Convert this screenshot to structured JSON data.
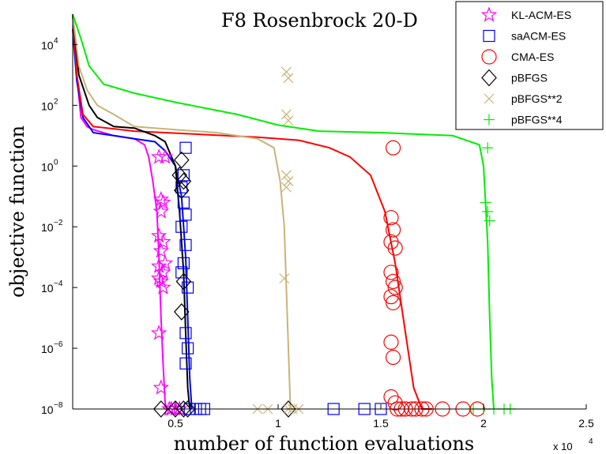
{
  "chart_data": {
    "type": "line",
    "title": "F8 Rosenbrock 20-D",
    "xlabel": "number of function evaluations",
    "ylabel": "objective function",
    "x_multiplier": "x 10",
    "x_multiplier_exp": "4",
    "xlim": [
      0,
      2.5
    ],
    "ylim_log10": [
      -8,
      5
    ],
    "y_scale": "log",
    "grid": false,
    "legend_position": "top-right",
    "x_ticks": [
      {
        "value": 0.5,
        "label": "0.5"
      },
      {
        "value": 1,
        "label": "1"
      },
      {
        "value": 1.5,
        "label": "1.5"
      },
      {
        "value": 2,
        "label": "2"
      },
      {
        "value": 2.5,
        "label": "2.5"
      }
    ],
    "y_ticks": [
      {
        "exp": -8,
        "base": "10",
        "sup": "−8"
      },
      {
        "exp": -6,
        "base": "10",
        "sup": "−6"
      },
      {
        "exp": -4,
        "base": "10",
        "sup": "−4"
      },
      {
        "exp": -2,
        "base": "10",
        "sup": "−2"
      },
      {
        "exp": 0,
        "base": "10",
        "sup": "0"
      },
      {
        "exp": 2,
        "base": "10",
        "sup": "2"
      },
      {
        "exp": 4,
        "base": "10",
        "sup": "4"
      }
    ],
    "series": [
      {
        "name": "KL-ACM-ES",
        "color": "#ff00ff",
        "marker": "star",
        "line": [
          [
            0,
            5
          ],
          [
            0.02,
            3
          ],
          [
            0.04,
            1.6
          ],
          [
            0.07,
            1.3
          ],
          [
            0.1,
            1.2
          ],
          [
            0.15,
            1.1
          ],
          [
            0.2,
            1.0
          ],
          [
            0.3,
            0.9
          ],
          [
            0.35,
            0.7
          ],
          [
            0.37,
            0.3
          ],
          [
            0.39,
            -0.5
          ],
          [
            0.41,
            -1.5
          ],
          [
            0.42,
            -3
          ],
          [
            0.43,
            -5
          ],
          [
            0.44,
            -6.5
          ],
          [
            0.45,
            -7.8
          ],
          [
            0.46,
            -8
          ]
        ],
        "points": [
          [
            0.42,
            0.3
          ],
          [
            0.45,
            0.3
          ],
          [
            0.43,
            -1.1
          ],
          [
            0.43,
            -1.5
          ],
          [
            0.44,
            -1.2
          ],
          [
            0.42,
            -2.3
          ],
          [
            0.44,
            -2.5
          ],
          [
            0.43,
            -2.8
          ],
          [
            0.42,
            -3.3
          ],
          [
            0.44,
            -3.5
          ],
          [
            0.43,
            -3.8
          ],
          [
            0.45,
            -3.2
          ],
          [
            0.42,
            -3.7
          ],
          [
            0.44,
            -4.0
          ],
          [
            0.42,
            -5.5
          ],
          [
            0.43,
            -7.3
          ],
          [
            0.47,
            -8
          ],
          [
            0.48,
            -8
          ],
          [
            0.5,
            -8
          ],
          [
            0.52,
            -8
          ]
        ]
      },
      {
        "name": "saACM-ES",
        "color": "#0000ff",
        "marker": "square",
        "line": [
          [
            0,
            4.5
          ],
          [
            0.02,
            2.8
          ],
          [
            0.05,
            1.6
          ],
          [
            0.1,
            1.1
          ],
          [
            0.2,
            1.0
          ],
          [
            0.3,
            0.9
          ],
          [
            0.4,
            0.8
          ],
          [
            0.45,
            0.5
          ],
          [
            0.5,
            0
          ],
          [
            0.53,
            -1
          ],
          [
            0.55,
            -3
          ],
          [
            0.56,
            -5
          ],
          [
            0.57,
            -7
          ],
          [
            0.58,
            -8
          ]
        ],
        "points": [
          [
            0.55,
            0.6
          ],
          [
            0.54,
            -0.3
          ],
          [
            0.53,
            -0.7
          ],
          [
            0.54,
            -1.2
          ],
          [
            0.55,
            -1.6
          ],
          [
            0.53,
            -2.0
          ],
          [
            0.55,
            -2.6
          ],
          [
            0.54,
            -3.2
          ],
          [
            0.53,
            -3.5
          ],
          [
            0.56,
            -4.0
          ],
          [
            0.55,
            -5.5
          ],
          [
            0.56,
            -6.0
          ],
          [
            0.55,
            -6.5
          ],
          [
            0.57,
            -8
          ],
          [
            0.6,
            -8
          ],
          [
            0.62,
            -8
          ],
          [
            0.64,
            -8
          ],
          [
            1.27,
            -8
          ],
          [
            1.42,
            -8
          ],
          [
            1.5,
            -8
          ]
        ]
      },
      {
        "name": "CMA-ES",
        "color": "#ff0000",
        "marker": "circle",
        "line": [
          [
            0,
            5
          ],
          [
            0.02,
            3
          ],
          [
            0.05,
            1.7
          ],
          [
            0.1,
            1.3
          ],
          [
            0.3,
            1.15
          ],
          [
            0.6,
            1.05
          ],
          [
            0.9,
            0.95
          ],
          [
            1.1,
            0.85
          ],
          [
            1.25,
            0.6
          ],
          [
            1.35,
            0.3
          ],
          [
            1.45,
            -0.3
          ],
          [
            1.52,
            -1.5
          ],
          [
            1.57,
            -3.2
          ],
          [
            1.62,
            -5.5
          ],
          [
            1.66,
            -7.3
          ],
          [
            1.7,
            -8
          ],
          [
            1.75,
            -8
          ]
        ],
        "points": [
          [
            1.56,
            0.6
          ],
          [
            1.55,
            -1.7
          ],
          [
            1.56,
            -2.1
          ],
          [
            1.55,
            -2.5
          ],
          [
            1.57,
            -2.7
          ],
          [
            1.55,
            -3.5
          ],
          [
            1.56,
            -3.8
          ],
          [
            1.57,
            -4.0
          ],
          [
            1.55,
            -4.3
          ],
          [
            1.56,
            -4.5
          ],
          [
            1.55,
            -5.8
          ],
          [
            1.56,
            -6.3
          ],
          [
            1.55,
            -7.6
          ],
          [
            1.57,
            -7.8
          ],
          [
            1.58,
            -8
          ],
          [
            1.6,
            -8
          ],
          [
            1.62,
            -8
          ],
          [
            1.65,
            -8
          ],
          [
            1.67,
            -8
          ],
          [
            1.7,
            -8
          ],
          [
            1.72,
            -8
          ],
          [
            1.8,
            -8
          ],
          [
            1.9,
            -8
          ],
          [
            1.97,
            -8
          ]
        ]
      },
      {
        "name": "pBFGS",
        "color": "#000000",
        "marker": "diamond",
        "line": [
          [
            0,
            5
          ],
          [
            0.03,
            3
          ],
          [
            0.08,
            2.0
          ],
          [
            0.12,
            1.6
          ],
          [
            0.2,
            1.3
          ],
          [
            0.3,
            1.25
          ],
          [
            0.4,
            1.0
          ],
          [
            0.45,
            0.8
          ],
          [
            0.5,
            0
          ],
          [
            0.52,
            -1.5
          ],
          [
            0.54,
            -3.5
          ],
          [
            0.55,
            -5.5
          ],
          [
            0.56,
            -7.3
          ],
          [
            0.57,
            -8
          ]
        ],
        "points": [
          [
            0.53,
            0.2
          ],
          [
            0.52,
            -0.3
          ],
          [
            0.54,
            -0.5
          ],
          [
            0.53,
            -0.8
          ],
          [
            0.54,
            -3.8
          ],
          [
            0.53,
            -4.8
          ],
          [
            0.43,
            -8
          ],
          [
            0.5,
            -8
          ],
          [
            0.54,
            -8
          ],
          [
            0.56,
            -8
          ],
          [
            1.05,
            -8
          ]
        ]
      },
      {
        "name": "pBFGS**2",
        "color": "#c8b478",
        "marker": "x",
        "line": [
          [
            0,
            5
          ],
          [
            0.03,
            3.3
          ],
          [
            0.07,
            2.5
          ],
          [
            0.12,
            2.0
          ],
          [
            0.2,
            1.7
          ],
          [
            0.3,
            1.3
          ],
          [
            0.5,
            1.2
          ],
          [
            0.7,
            1.1
          ],
          [
            0.9,
            0.9
          ],
          [
            0.98,
            0.6
          ],
          [
            1.01,
            -0.5
          ],
          [
            1.03,
            -2.0
          ],
          [
            1.04,
            -4.0
          ],
          [
            1.05,
            -6.0
          ],
          [
            1.06,
            -8
          ]
        ],
        "points": [
          [
            1.04,
            3.1
          ],
          [
            1.05,
            2.9
          ],
          [
            1.04,
            1.7
          ],
          [
            1.05,
            1.5
          ],
          [
            1.04,
            -0.3
          ],
          [
            1.05,
            -0.5
          ],
          [
            1.04,
            -0.7
          ],
          [
            1.03,
            -3.7
          ],
          [
            0.9,
            -8
          ],
          [
            0.95,
            -8
          ],
          [
            1.05,
            -8
          ],
          [
            1.07,
            -8
          ],
          [
            1.1,
            -8
          ]
        ]
      },
      {
        "name": "pBFGS**4",
        "color": "#00ee00",
        "marker": "plus",
        "line": [
          [
            0,
            5
          ],
          [
            0.04,
            4.2
          ],
          [
            0.08,
            3.3
          ],
          [
            0.15,
            2.7
          ],
          [
            0.3,
            2.4
          ],
          [
            0.5,
            2.1
          ],
          [
            0.8,
            1.7
          ],
          [
            1.0,
            1.35
          ],
          [
            1.2,
            1.15
          ],
          [
            1.5,
            1.1
          ],
          [
            1.85,
            1.0
          ],
          [
            1.98,
            0.7
          ],
          [
            2.0,
            0
          ],
          [
            2.02,
            -2.5
          ],
          [
            2.03,
            -5.0
          ],
          [
            2.04,
            -7
          ],
          [
            2.05,
            -8
          ]
        ],
        "points": [
          [
            2.02,
            0.6
          ],
          [
            2.01,
            -1.2
          ],
          [
            2.02,
            -1.5
          ],
          [
            2.03,
            -1.8
          ],
          [
            1.95,
            -8
          ],
          [
            2.0,
            -8
          ],
          [
            2.05,
            -8
          ],
          [
            2.1,
            -8
          ],
          [
            2.13,
            -8
          ]
        ]
      }
    ]
  }
}
